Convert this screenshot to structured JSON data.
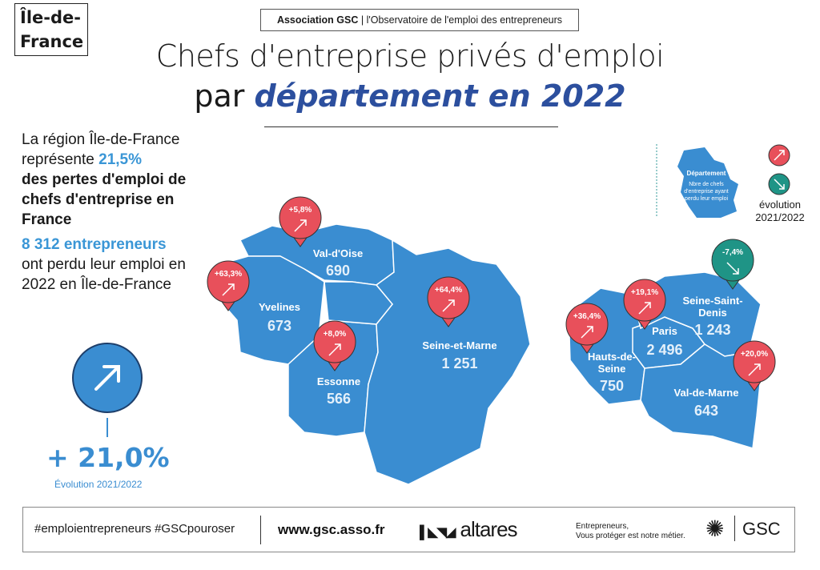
{
  "region": "Île-de-France",
  "header": {
    "org": "Association GSC",
    "org_sub": "l'Observatoire de l'emploi des entrepreneurs"
  },
  "title": {
    "line1": "Chefs d'entreprise privés d'emploi",
    "line2_plain": "par ",
    "line2_emph": "département en 2022"
  },
  "intro": {
    "l1": "La région Île-de-France",
    "l2": "représente ",
    "pct": "21,5%",
    "l3": "des pertes d'emploi de chefs d'entreprise en France",
    "count": "8 312 entrepreneurs",
    "l4": "ont perdu leur emploi en 2022 en Île-de-France"
  },
  "total": {
    "value": "+ 21,0%",
    "label": "Évolution 2021/2022",
    "icon": "arrow-up-right-icon"
  },
  "legend": {
    "dept": "Département",
    "desc": "Nbre de chefs d'entreprise ayant perdu leur emploi",
    "evolution": "évolution",
    "period": "2021/2022"
  },
  "colors": {
    "map": "#3a8dd1",
    "increase": "#e8505b",
    "decrease": "#1f9486",
    "title_accent": "#2c4f9e"
  },
  "departments": [
    {
      "name": "Val-d'Oise",
      "value": "690",
      "evo": "+5,8%",
      "trend": "up"
    },
    {
      "name": "Yvelines",
      "value": "673",
      "evo": "+63,3%",
      "trend": "up"
    },
    {
      "name": "Essonne",
      "value": "566",
      "evo": "+8,0%",
      "trend": "up"
    },
    {
      "name": "Seine-et-Marne",
      "value": "1 251",
      "evo": "+64,4%",
      "trend": "up"
    },
    {
      "name": "Hauts-de-Seine",
      "value": "750",
      "evo": "+36,4%",
      "trend": "up"
    },
    {
      "name": "Paris",
      "value": "2 496",
      "evo": "+19,1%",
      "trend": "up"
    },
    {
      "name": "Seine-Saint-Denis",
      "value": "1 243",
      "evo": "-7,4%",
      "trend": "down"
    },
    {
      "name": "Val-de-Marne",
      "value": "643",
      "evo": "+20,0%",
      "trend": "up"
    }
  ],
  "footer": {
    "hashtags": "#emploientrepreneurs #GSCpouroser",
    "url": "www.gsc.asso.fr",
    "partner": "altares",
    "tagline1": "Entrepreneurs,",
    "tagline2": "Vous protéger est notre métier.",
    "brand": "GSC"
  }
}
